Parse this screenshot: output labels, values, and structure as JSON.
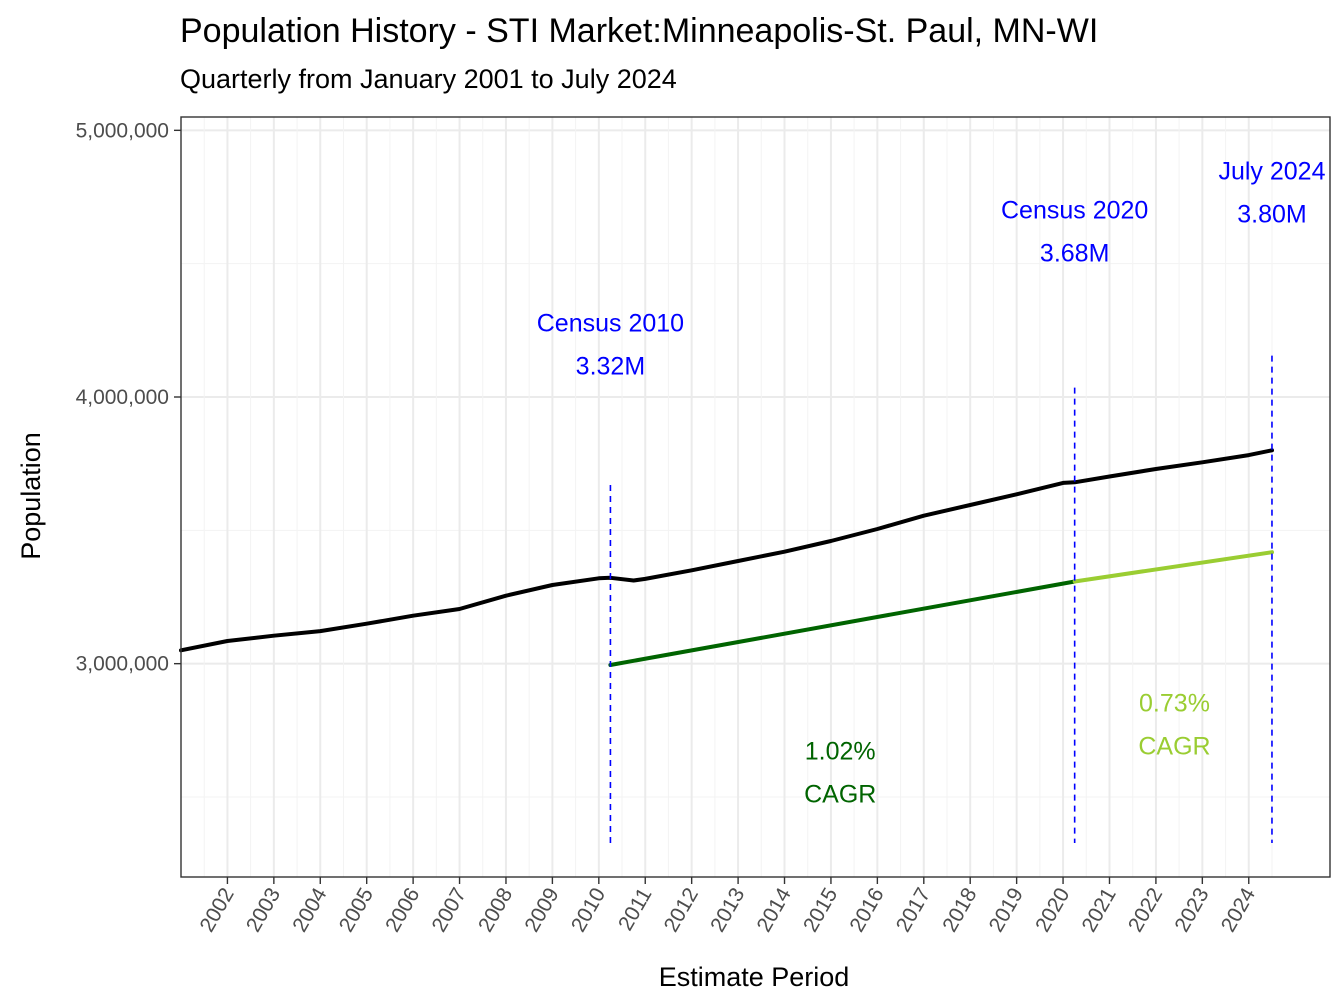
{
  "chart_data": {
    "type": "line",
    "title": "Population History - STI Market:Minneapolis-St. Paul, MN-WI",
    "subtitle": "Quarterly from January 2001 to July 2024",
    "xlabel": "Estimate Period",
    "ylabel": "Population",
    "ylim": [
      2200000,
      5050000
    ],
    "yticks": [
      3000000,
      4000000,
      5000000
    ],
    "ytick_labels": [
      "3,000,000",
      "4,000,000",
      "5,000,000"
    ],
    "xlim": [
      2001.0,
      2025.75
    ],
    "xtick_labels": [
      "2002",
      "2003",
      "2004",
      "2005",
      "2006",
      "2007",
      "2008",
      "2009",
      "2010",
      "2011",
      "2012",
      "2013",
      "2014",
      "2015",
      "2016",
      "2017",
      "2018",
      "2019",
      "2020",
      "2021",
      "2022",
      "2023",
      "2024"
    ],
    "series": [
      {
        "name": "Population",
        "color": "#000000",
        "x": [
          2001.0,
          2002.0,
          2003.0,
          2004.0,
          2005.0,
          2006.0,
          2007.0,
          2008.0,
          2009.0,
          2010.0,
          2010.25,
          2010.75,
          2011.0,
          2012.0,
          2013.0,
          2014.0,
          2015.0,
          2016.0,
          2017.0,
          2018.0,
          2019.0,
          2020.0,
          2020.25,
          2021.0,
          2022.0,
          2023.0,
          2024.0,
          2024.5
        ],
        "values": [
          3050000,
          3085000,
          3105000,
          3122000,
          3150000,
          3180000,
          3205000,
          3255000,
          3295000,
          3320000,
          3322000,
          3312000,
          3318000,
          3350000,
          3385000,
          3420000,
          3460000,
          3505000,
          3555000,
          3595000,
          3635000,
          3678000,
          3680000,
          3702000,
          3730000,
          3755000,
          3782000,
          3800000
        ]
      },
      {
        "name": "CAGR 2010-2020",
        "color": "#006400",
        "x": [
          2010.25,
          2020.25
        ],
        "values": [
          2995000,
          3308000
        ]
      },
      {
        "name": "CAGR 2020-2024",
        "color": "#9acd32",
        "x": [
          2020.25,
          2024.5
        ],
        "values": [
          3308000,
          3418000
        ]
      }
    ],
    "reference_lines": [
      {
        "x": 2010.25,
        "y_top": 3670000,
        "color": "#0000ff"
      },
      {
        "x": 2020.25,
        "y_top": 4035000,
        "color": "#0000ff"
      },
      {
        "x": 2024.5,
        "y_top": 4155000,
        "color": "#0000ff"
      }
    ],
    "annotations": [
      {
        "lines": [
          "Census 2010",
          "3.32M"
        ],
        "x": 2010.25,
        "y": 4245000,
        "color": "#0000ff"
      },
      {
        "lines": [
          "Census 2020",
          "3.68M"
        ],
        "x": 2020.25,
        "y": 4670000,
        "color": "#0000ff"
      },
      {
        "lines": [
          "July 2024",
          "3.80M"
        ],
        "x": 2024.5,
        "y": 4815000,
        "color": "#0000ff"
      },
      {
        "lines": [
          "1.02%",
          "CAGR"
        ],
        "x": 2015.2,
        "y": 2640000,
        "color": "#006400"
      },
      {
        "lines": [
          "0.73%",
          "CAGR"
        ],
        "x": 2022.4,
        "y": 2820000,
        "color": "#9acd32"
      }
    ]
  }
}
